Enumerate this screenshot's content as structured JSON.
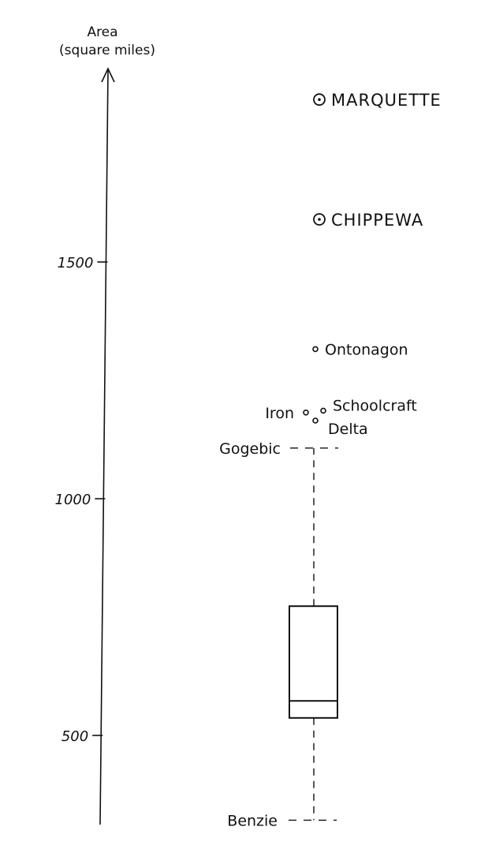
{
  "chart_data": {
    "type": "box",
    "title": "",
    "ylabel_line1": "Area",
    "ylabel_line2": "(square miles)",
    "xlabel": "",
    "yticks": [
      500,
      1000,
      1500
    ],
    "yticks_labels": [
      "500",
      "1000",
      "1500"
    ],
    "box": {
      "min": 321,
      "q1": 537,
      "median": 573,
      "q3": 773,
      "max": 1107
    },
    "whisker_labels": {
      "upper": "Gogebic",
      "lower": "Benzie"
    },
    "outliers": [
      {
        "name": "Delta",
        "value": 1165,
        "kind": "outside"
      },
      {
        "name": "Iron",
        "value": 1182,
        "kind": "outside"
      },
      {
        "name": "Schoolcraft",
        "value": 1186,
        "kind": "outside"
      },
      {
        "name": "Ontonagon",
        "value": 1316,
        "kind": "outside"
      },
      {
        "name": "CHIPPEWA",
        "value": 1590,
        "kind": "far-out"
      },
      {
        "name": "MARQUETTE",
        "value": 1843,
        "kind": "far-out"
      }
    ]
  }
}
